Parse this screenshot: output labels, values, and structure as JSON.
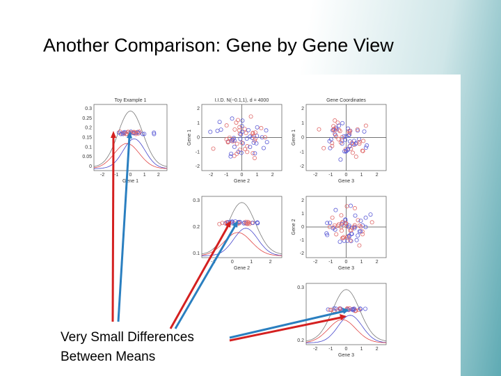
{
  "slide": {
    "title": "Another Comparison: Gene by Gene View",
    "annotation": [
      "Very Small Differences",
      "Between Means"
    ]
  },
  "figure": {
    "panels": [
      {
        "kind": "density",
        "title": "Toy Example 1",
        "yticks": [
          "0.3",
          "0.25",
          "0.2",
          "0.15",
          "0.1",
          "0.05",
          "0"
        ],
        "xticks": [
          "-2",
          "-1",
          "0",
          "1",
          "2"
        ],
        "xlabel": "Gene 1"
      },
      {
        "kind": "scatter",
        "title": "I.I.D. N(−0.1,1), d = 4000",
        "ylabel": "Gene 1",
        "yticks": [
          "2",
          "1",
          "0",
          "-1",
          "-2"
        ],
        "xticks": [
          "-2",
          "-1",
          "0",
          "1",
          "2"
        ],
        "xlabel": "Gene 2"
      },
      {
        "kind": "scatter",
        "title": "Gene Coordinates",
        "ylabel": "Gene 1",
        "yticks": [
          "2",
          "1",
          "0",
          "-1",
          "-2"
        ],
        "xticks": [
          "-2",
          "-1",
          "0",
          "1",
          "2"
        ],
        "xlabel": "Gene 3"
      },
      {
        "kind": "density",
        "yticks": [
          "0.3",
          "0.2",
          "0.1"
        ],
        "xticks": [
          "-1",
          "0",
          "1",
          "2"
        ],
        "xlabel": "Gene 2"
      },
      {
        "kind": "scatter",
        "ylabel": "Gene 2",
        "yticks": [
          "2",
          "1",
          "0",
          "-1",
          "-2"
        ],
        "xticks": [
          "-2",
          "-1",
          "0",
          "1",
          "2"
        ],
        "xlabel": "Gene 3"
      },
      {
        "kind": "density",
        "yticks": [
          "0.3",
          "0.2"
        ],
        "xticks": [
          "-2",
          "-1",
          "0",
          "1",
          "2"
        ],
        "xlabel": "Gene 3"
      }
    ]
  }
}
